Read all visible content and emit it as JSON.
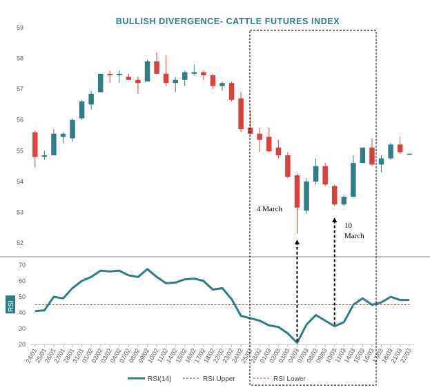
{
  "chart_data": [
    {
      "type": "candlestick",
      "title": "BULLISH DIVERGENCE- CATTLE FUTURES INDEX",
      "ylim": [
        52,
        59
      ],
      "yticks": [
        52,
        53,
        54,
        55,
        56,
        57,
        58,
        59
      ],
      "categories": [
        "24/01",
        "25/01",
        "26/01",
        "27/01",
        "28/01",
        "31/01",
        "01/02",
        "02/02",
        "03/02",
        "04/02",
        "07/02",
        "08/02",
        "09/02",
        "10/02",
        "11/02",
        "14/02",
        "15/02",
        "16/02",
        "17/02",
        "18/02",
        "22/02",
        "23/02",
        "24/02",
        "25/02",
        "28/02",
        "01/03",
        "02/03",
        "03/03",
        "04/03",
        "07/03",
        "08/03",
        "09/03",
        "10/03",
        "11/03",
        "14/03",
        "15/03",
        "16/03",
        "17/03",
        "18/03",
        "21/03",
        "22/03"
      ],
      "ohlc": [
        [
          55.6,
          55.65,
          54.45,
          54.8
        ],
        [
          54.8,
          55.0,
          54.7,
          54.85
        ],
        [
          54.85,
          55.7,
          54.85,
          55.55
        ],
        [
          55.45,
          55.6,
          55.25,
          55.55
        ],
        [
          55.4,
          56.05,
          55.3,
          56.0
        ],
        [
          56.05,
          56.65,
          56.0,
          56.6
        ],
        [
          56.5,
          56.95,
          56.35,
          56.85
        ],
        [
          56.9,
          57.5,
          56.9,
          57.5
        ],
        [
          57.5,
          57.6,
          57.2,
          57.45
        ],
        [
          57.45,
          57.6,
          57.2,
          57.5
        ],
        [
          57.4,
          57.5,
          57.3,
          57.3
        ],
        [
          57.3,
          57.4,
          56.85,
          57.2
        ],
        [
          57.25,
          57.95,
          57.25,
          57.9
        ],
        [
          57.9,
          58.2,
          57.5,
          57.5
        ],
        [
          57.5,
          58.1,
          57.1,
          57.2
        ],
        [
          57.2,
          57.4,
          56.9,
          57.3
        ],
        [
          57.3,
          57.6,
          57.1,
          57.55
        ],
        [
          57.5,
          57.8,
          57.45,
          57.55
        ],
        [
          57.55,
          57.6,
          57.3,
          57.45
        ],
        [
          57.45,
          57.5,
          57.0,
          57.1
        ],
        [
          57.1,
          57.25,
          56.95,
          57.2
        ],
        [
          57.2,
          57.25,
          56.6,
          56.65
        ],
        [
          56.7,
          56.9,
          55.6,
          55.7
        ],
        [
          55.75,
          56.3,
          55.5,
          55.55
        ],
        [
          55.55,
          55.75,
          54.95,
          55.35
        ],
        [
          55.45,
          55.75,
          54.95,
          54.98
        ],
        [
          55.1,
          55.35,
          54.75,
          54.85
        ],
        [
          54.85,
          54.95,
          54.1,
          54.15
        ],
        [
          54.2,
          54.25,
          52.3,
          53.15
        ],
        [
          53.05,
          54.1,
          52.95,
          54.0
        ],
        [
          54.0,
          54.75,
          53.9,
          54.5
        ],
        [
          54.5,
          54.6,
          53.85,
          53.9
        ],
        [
          53.85,
          53.9,
          53.2,
          53.25
        ],
        [
          53.25,
          53.55,
          53.2,
          53.5
        ],
        [
          53.5,
          54.85,
          53.5,
          54.6
        ],
        [
          54.6,
          55.1,
          54.6,
          55.1
        ],
        [
          55.1,
          55.4,
          54.5,
          54.55
        ],
        [
          54.55,
          54.85,
          54.3,
          54.75
        ],
        [
          54.75,
          55.25,
          54.7,
          55.2
        ],
        [
          55.2,
          55.45,
          54.9,
          54.95
        ],
        [
          54.9,
          54.92,
          54.88,
          54.9
        ]
      ],
      "colors": {
        "up": "#2e7d87",
        "down": "#d9413a"
      }
    },
    {
      "type": "line",
      "ylabel": "RSI",
      "ylim": [
        20,
        70
      ],
      "yticks": [
        20,
        30,
        40,
        50,
        60,
        70
      ],
      "series": [
        {
          "name": "RSI(14)",
          "color": "#2e7d87",
          "values": [
            41,
            41.5,
            50,
            49,
            55.5,
            60,
            62.5,
            66.5,
            66,
            66.5,
            63.5,
            62.5,
            67.5,
            62.5,
            58.5,
            59,
            61,
            61.5,
            60,
            54.5,
            55.5,
            48.5,
            38,
            36.5,
            35,
            32,
            31,
            27,
            21,
            32.5,
            38.5,
            35,
            31.5,
            34,
            45,
            49,
            45,
            46.5,
            50,
            48,
            48
          ]
        },
        {
          "name": "RSI Upper",
          "color": "#1f3a5f",
          "values": []
        },
        {
          "name": "RSI Lower",
          "color": "#c0392b",
          "values": [
            45
          ]
        }
      ]
    }
  ],
  "annotations": {
    "march4": "4 March",
    "march10_line1": "10",
    "march10_line2": "March"
  },
  "legend": {
    "rsi14": "RSI(14)",
    "upper": "RSI Upper",
    "lower": "RSI Lower"
  }
}
